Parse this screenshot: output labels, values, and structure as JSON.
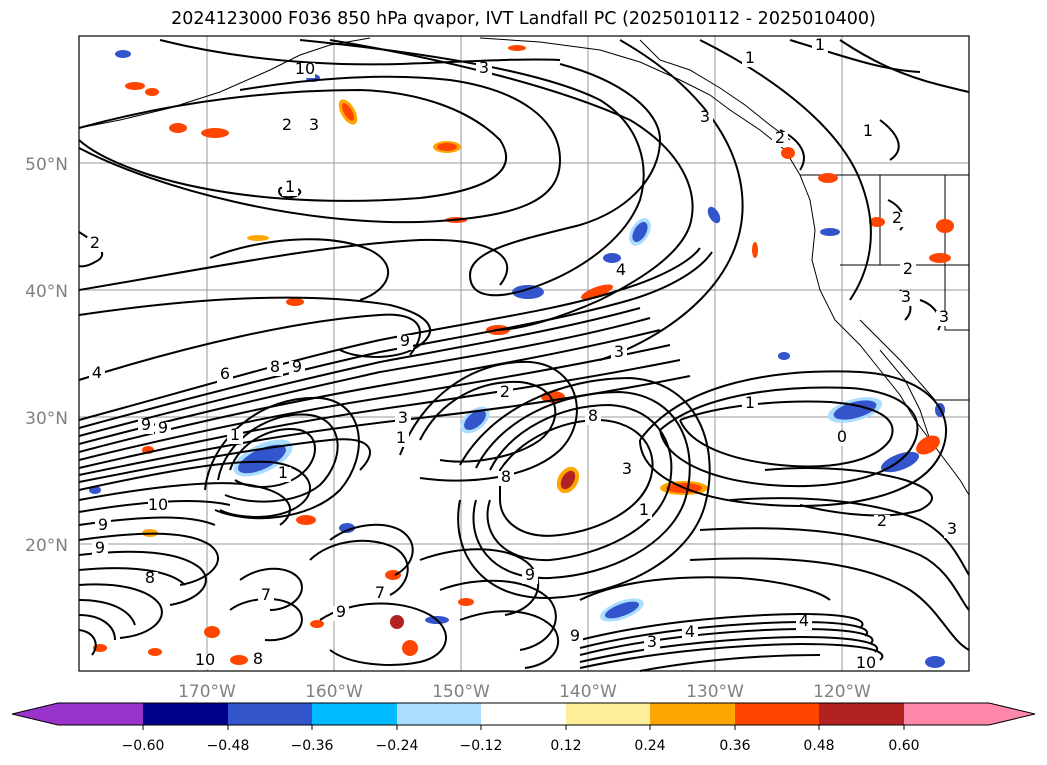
{
  "title": "2024123000 F036 850 hPa qvapor, IVT Landfall PC (2025010112 - 2025010400)",
  "lat_labels": [
    "50°N",
    "40°N",
    "30°N",
    "20°N"
  ],
  "lon_labels": [
    "170°W",
    "160°W",
    "150°W",
    "140°W",
    "130°W",
    "120°W"
  ],
  "colorbar": {
    "colors": [
      "#9933cc",
      "#00008b",
      "#3355cc",
      "#00bbff",
      "#aaddff",
      "#ffffff",
      "#ffee99",
      "#ffa500",
      "#ff4500",
      "#b22222",
      "#ff88aa"
    ],
    "tick_labels": [
      "−0.60",
      "−0.48",
      "−0.36",
      "−0.24",
      "−0.12",
      "0.12",
      "0.24",
      "0.36",
      "0.48",
      "0.60"
    ]
  },
  "contour_labels": [
    "1",
    "3",
    "3",
    "2",
    "3",
    "2",
    "1",
    "9",
    "8",
    "9",
    "6",
    "4",
    "9",
    "1",
    "4",
    "3",
    "9",
    "3",
    "2",
    "1",
    "1",
    "8",
    "8",
    "3",
    "1",
    "9",
    "10",
    "9",
    "8",
    "7",
    "7",
    "10",
    "8",
    "9",
    "9",
    "9",
    "3",
    "4",
    "10",
    "1",
    "0",
    "2",
    "3",
    "10",
    "1",
    "2",
    "3",
    "1",
    "2",
    "2",
    "3",
    "4"
  ]
}
